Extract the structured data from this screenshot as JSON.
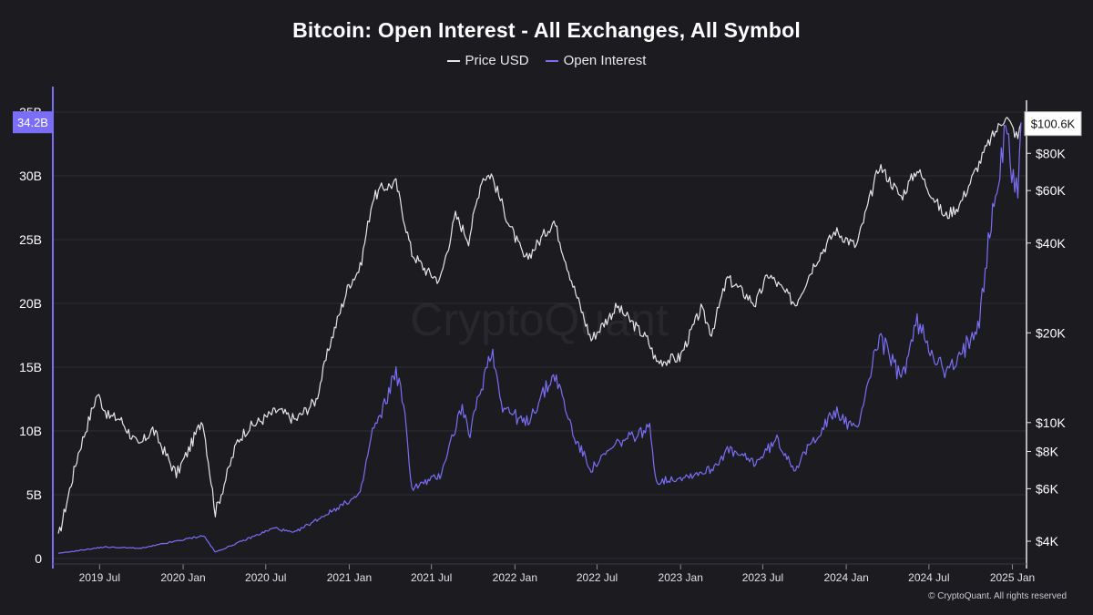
{
  "chart_data": {
    "type": "line",
    "title": "Bitcoin: Open Interest - All Exchanges, All Symbol",
    "watermark": "CryptoQuant",
    "copyright": "© CryptoQuant. All rights reserved",
    "legend_position": "top-center",
    "grid": true,
    "colors": {
      "background": "#1b1b20",
      "price": "#e6e6ea",
      "open_interest": "#7b6ef6",
      "grid": "#2c2c34"
    },
    "x_ticks": [
      "2019 Jul",
      "2020 Jan",
      "2020 Jul",
      "2021 Jan",
      "2021 Jul",
      "2022 Jan",
      "2022 Jul",
      "2023 Jan",
      "2023 Jul",
      "2024 Jan",
      "2024 Jul",
      "2025 Jan"
    ],
    "x_range": [
      "2019-04-01",
      "2025-01-20"
    ],
    "y_left": {
      "label": "",
      "ticks": [
        "0",
        "5B",
        "10B",
        "15B",
        "20B",
        "25B",
        "30B",
        "35B"
      ],
      "tick_values": [
        0,
        5,
        10,
        15,
        20,
        25,
        30,
        35
      ],
      "unit": "billion USD",
      "range": [
        0,
        35
      ]
    },
    "y_right": {
      "label": "",
      "scale": "log",
      "ticks": [
        "$4K",
        "$6K",
        "$8K",
        "$10K",
        "$20K",
        "$40K",
        "$60K",
        "$80K"
      ],
      "tick_values": [
        4000,
        6000,
        8000,
        10000,
        20000,
        40000,
        60000,
        80000
      ],
      "range": [
        3500,
        110000
      ]
    },
    "current_labels": {
      "open_interest": "34.2B",
      "price": "$100.6K"
    },
    "series": [
      {
        "name": "Price USD",
        "axis": "right",
        "points": [
          [
            "2019-04-01",
            4100
          ],
          [
            "2019-05-15",
            7900
          ],
          [
            "2019-06-26",
            12500
          ],
          [
            "2019-07-20",
            10500
          ],
          [
            "2019-08-15",
            10300
          ],
          [
            "2019-09-25",
            8300
          ],
          [
            "2019-10-26",
            9500
          ],
          [
            "2019-12-17",
            6700
          ],
          [
            "2020-01-10",
            7900
          ],
          [
            "2020-02-13",
            10300
          ],
          [
            "2020-03-12",
            5000
          ],
          [
            "2020-04-30",
            8700
          ],
          [
            "2020-05-20",
            9500
          ],
          [
            "2020-07-27",
            11000
          ],
          [
            "2020-09-05",
            10200
          ],
          [
            "2020-10-20",
            11900
          ],
          [
            "2020-11-20",
            18500
          ],
          [
            "2020-12-31",
            29000
          ],
          [
            "2021-01-25",
            33000
          ],
          [
            "2021-02-21",
            56000
          ],
          [
            "2021-03-13",
            61000
          ],
          [
            "2021-04-14",
            63500
          ],
          [
            "2021-05-19",
            37000
          ],
          [
            "2021-06-22",
            32000
          ],
          [
            "2021-07-20",
            30000
          ],
          [
            "2021-08-23",
            49500
          ],
          [
            "2021-09-21",
            41000
          ],
          [
            "2021-10-20",
            66000
          ],
          [
            "2021-11-10",
            68000
          ],
          [
            "2021-12-20",
            46000
          ],
          [
            "2022-01-24",
            35000
          ],
          [
            "2022-03-28",
            47500
          ],
          [
            "2022-05-12",
            28000
          ],
          [
            "2022-06-18",
            19000
          ],
          [
            "2022-08-14",
            24500
          ],
          [
            "2022-10-20",
            19000
          ],
          [
            "2022-11-09",
            16000
          ],
          [
            "2022-12-30",
            16500
          ],
          [
            "2023-02-15",
            24000
          ],
          [
            "2023-03-10",
            20000
          ],
          [
            "2023-04-14",
            30500
          ],
          [
            "2023-06-15",
            25000
          ],
          [
            "2023-07-13",
            31500
          ],
          [
            "2023-09-11",
            25000
          ],
          [
            "2023-10-24",
            34500
          ],
          [
            "2023-12-08",
            44000
          ],
          [
            "2024-01-23",
            39000
          ],
          [
            "2024-03-14",
            73000
          ],
          [
            "2024-05-01",
            57000
          ],
          [
            "2024-06-05",
            71000
          ],
          [
            "2024-08-05",
            49000
          ],
          [
            "2024-09-06",
            53500
          ],
          [
            "2024-09-30",
            64000
          ],
          [
            "2024-11-12",
            88000
          ],
          [
            "2024-12-17",
            107000
          ],
          [
            "2025-01-13",
            90000
          ],
          [
            "2025-01-20",
            100600
          ]
        ]
      },
      {
        "name": "Open Interest",
        "axis": "left",
        "points": [
          [
            "2019-04-01",
            0.4
          ],
          [
            "2019-07-10",
            0.9
          ],
          [
            "2019-10-01",
            0.8
          ],
          [
            "2020-02-15",
            1.8
          ],
          [
            "2020-03-12",
            0.5
          ],
          [
            "2020-07-20",
            2.4
          ],
          [
            "2020-09-01",
            2.0
          ],
          [
            "2020-12-31",
            4.5
          ],
          [
            "2021-01-25",
            5.0
          ],
          [
            "2021-02-21",
            10.0
          ],
          [
            "2021-03-10",
            11.0
          ],
          [
            "2021-04-14",
            14.8
          ],
          [
            "2021-05-01",
            12.0
          ],
          [
            "2021-05-19",
            5.5
          ],
          [
            "2021-07-20",
            6.5
          ],
          [
            "2021-09-07",
            12.0
          ],
          [
            "2021-09-21",
            9.5
          ],
          [
            "2021-11-10",
            16.5
          ],
          [
            "2021-12-05",
            12.0
          ],
          [
            "2022-01-24",
            10.5
          ],
          [
            "2022-03-30",
            14.5
          ],
          [
            "2022-05-12",
            9.5
          ],
          [
            "2022-06-18",
            7.0
          ],
          [
            "2022-08-14",
            9.0
          ],
          [
            "2022-10-25",
            10.2
          ],
          [
            "2022-11-09",
            6.0
          ],
          [
            "2023-01-20",
            6.5
          ],
          [
            "2023-03-10",
            7.0
          ],
          [
            "2023-04-14",
            8.5
          ],
          [
            "2023-06-15",
            7.5
          ],
          [
            "2023-08-01",
            9.3
          ],
          [
            "2023-09-11",
            7.0
          ],
          [
            "2023-10-24",
            9.5
          ],
          [
            "2023-12-08",
            11.5
          ],
          [
            "2024-01-23",
            10.0
          ],
          [
            "2024-03-14",
            17.5
          ],
          [
            "2024-05-01",
            14.0
          ],
          [
            "2024-06-05",
            18.5
          ],
          [
            "2024-08-05",
            14.5
          ],
          [
            "2024-09-06",
            15.5
          ],
          [
            "2024-10-20",
            19.0
          ],
          [
            "2024-11-12",
            25.5
          ],
          [
            "2024-12-17",
            33.5
          ],
          [
            "2025-01-13",
            28.5
          ],
          [
            "2025-01-20",
            34.2
          ]
        ]
      }
    ]
  }
}
